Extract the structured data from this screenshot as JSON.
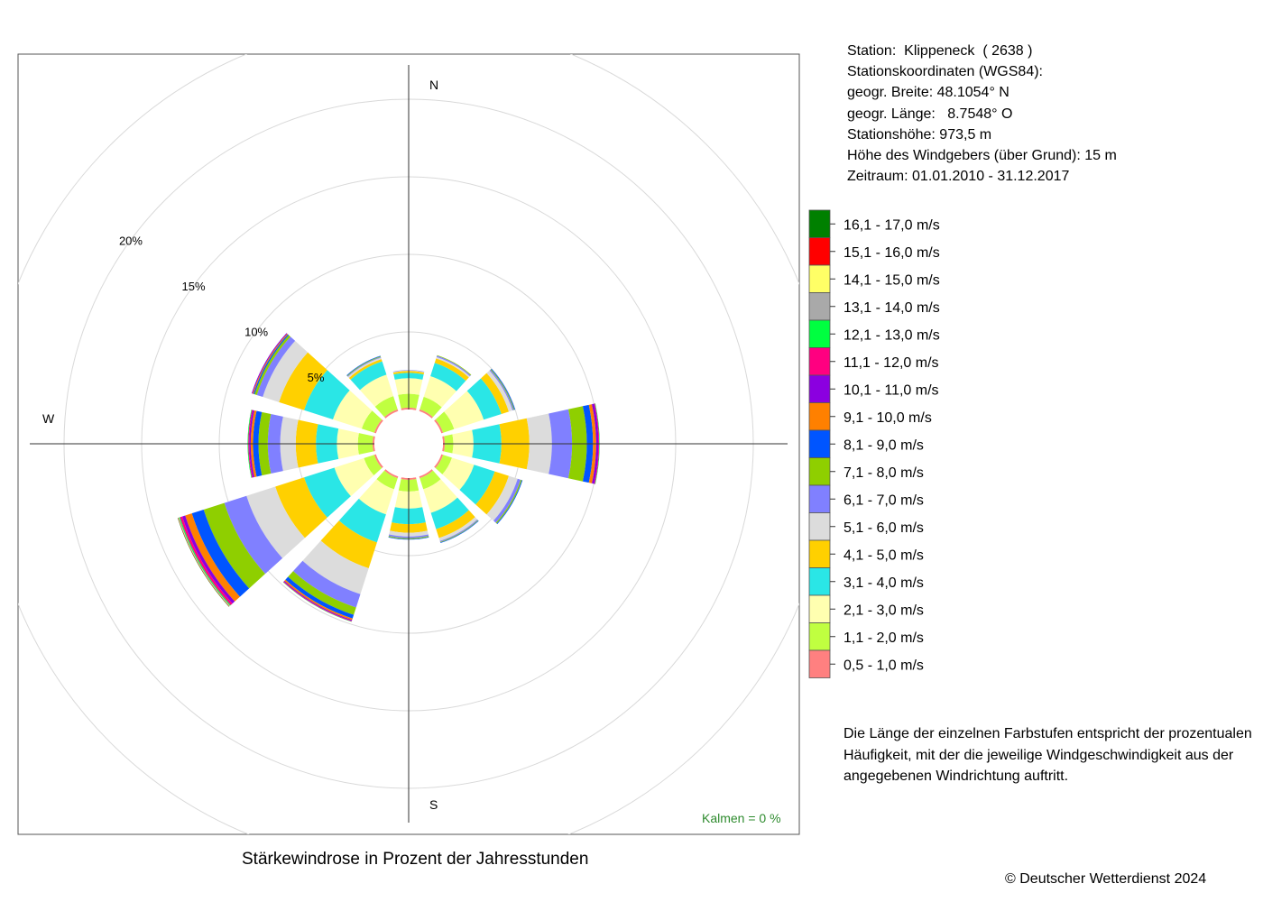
{
  "station": {
    "line_station": "Station:  Klippeneck  ( 2638 )",
    "line_coords": "Stationskoordinaten (WGS84):",
    "line_lat": "geogr. Breite: 48.1054° N",
    "line_lon": "geogr. Länge:   8.7548° O",
    "line_height": "Stationshöhe: 973,5 m",
    "line_anemometer": "Höhe des Windgebers (über Grund): 15 m",
    "line_period": "Zeitraum: 01.01.2010 - 31.12.2017"
  },
  "legend": {
    "classes": [
      {
        "label": "16,1 - 17,0 m/s",
        "color": "#008000"
      },
      {
        "label": "15,1 - 16,0 m/s",
        "color": "#ff0000"
      },
      {
        "label": "14,1 - 15,0 m/s",
        "color": "#ffff66"
      },
      {
        "label": "13,1 - 14,0 m/s",
        "color": "#a9a9a9"
      },
      {
        "label": "12,1 - 13,0 m/s",
        "color": "#00ff40"
      },
      {
        "label": "11,1 - 12,0 m/s",
        "color": "#ff0080"
      },
      {
        "label": "10,1 - 11,0 m/s",
        "color": "#8b00e0"
      },
      {
        "label": "9,1 - 10,0 m/s",
        "color": "#ff8000"
      },
      {
        "label": "8,1 - 9,0 m/s",
        "color": "#0055ff"
      },
      {
        "label": "7,1 - 8,0 m/s",
        "color": "#8fcf00"
      },
      {
        "label": "6,1 - 7,0 m/s",
        "color": "#8080ff"
      },
      {
        "label": "5,1 - 6,0 m/s",
        "color": "#dcdcdc"
      },
      {
        "label": "4,1 - 5,0 m/s",
        "color": "#ffd000"
      },
      {
        "label": "3,1 - 4,0 m/s",
        "color": "#2ae6e6"
      },
      {
        "label": "2,1 - 3,0 m/s",
        "color": "#ffffb0"
      },
      {
        "label": "1,1 - 2,0 m/s",
        "color": "#c0ff40"
      },
      {
        "label": "0,5 - 1,0 m/s",
        "color": "#ff8080"
      }
    ]
  },
  "note": "Die Länge der einzelnen Farbstufen entspricht der prozentualen Häufigkeit, mit der die jeweilige Windgeschwindigkeit aus der angegebenen Windrichtung auftritt.",
  "caption": "Stärkewindrose in Prozent der Jahresstunden",
  "copyright": "© Deutscher Wetterdienst  2024",
  "chart_data": {
    "type": "polar-stacked-bar",
    "title": "Stärkewindrose in Prozent der Jahresstunden",
    "directions_deg": [
      0,
      30,
      60,
      90,
      120,
      150,
      180,
      210,
      240,
      270,
      300,
      330
    ],
    "direction_labels": {
      "N": "N",
      "S": "S",
      "W": "W"
    },
    "radial_ticks": [
      {
        "value": 5,
        "label": "5%"
      },
      {
        "value": 10,
        "label": "10%"
      },
      {
        "value": 15,
        "label": "15%"
      },
      {
        "value": 20,
        "label": "20%"
      }
    ],
    "rmax_percent": 25,
    "calm_label": "Kalmen  =  0 %",
    "calm_percent": 0,
    "speed_classes": [
      "0,5 - 1,0 m/s",
      "1,1 - 2,0 m/s",
      "2,1 - 3,0 m/s",
      "3,1 - 4,0 m/s",
      "4,1 - 5,0 m/s",
      "5,1 - 6,0 m/s",
      "6,1 - 7,0 m/s",
      "7,1 - 8,0 m/s",
      "8,1 - 9,0 m/s",
      "9,1 - 10,0 m/s",
      "10,1 - 11,0 m/s",
      "11,1 - 12,0 m/s",
      "12,1 - 13,0 m/s",
      "13,1 - 14,0 m/s",
      "14,1 - 15,0 m/s",
      "15,1 - 16,0 m/s",
      "16,1 - 17,0 m/s"
    ],
    "series": [
      {
        "direction": 0,
        "values": [
          0.12,
          0.9,
          1.0,
          0.35,
          0.12,
          0.04,
          0.02,
          0,
          0,
          0,
          0,
          0,
          0,
          0,
          0,
          0,
          0
        ]
      },
      {
        "direction": 30,
        "values": [
          0.12,
          0.85,
          1.4,
          0.9,
          0.3,
          0.1,
          0.08,
          0.04,
          0,
          0,
          0,
          0,
          0,
          0,
          0,
          0,
          0
        ]
      },
      {
        "direction": 60,
        "values": [
          0.12,
          0.75,
          2.0,
          1.2,
          0.5,
          0.25,
          0.08,
          0.05,
          0.05,
          0,
          0,
          0,
          0,
          0,
          0,
          0,
          0
        ]
      },
      {
        "direction": 90,
        "values": [
          0.12,
          0.55,
          1.3,
          1.8,
          1.8,
          1.45,
          1.3,
          0.95,
          0.4,
          0.2,
          0.15,
          0.05,
          0.03,
          0,
          0,
          0,
          0
        ]
      },
      {
        "direction": 120,
        "values": [
          0.12,
          0.6,
          1.5,
          1.4,
          0.95,
          0.6,
          0.2,
          0.08,
          0.05,
          0,
          0,
          0,
          0,
          0,
          0,
          0,
          0
        ]
      },
      {
        "direction": 150,
        "values": [
          0.12,
          0.75,
          1.6,
          1.1,
          0.6,
          0.2,
          0.06,
          0.04,
          0.04,
          0,
          0,
          0,
          0,
          0,
          0,
          0,
          0
        ]
      },
      {
        "direction": 180,
        "values": [
          0.12,
          0.75,
          1.1,
          1.0,
          0.55,
          0.25,
          0.1,
          0.06,
          0.04,
          0,
          0,
          0,
          0,
          0,
          0,
          0,
          0
        ]
      },
      {
        "direction": 210,
        "values": [
          0.12,
          0.75,
          1.7,
          1.9,
          1.75,
          1.75,
          0.9,
          0.5,
          0.25,
          0.1,
          0.06,
          0.04,
          0.02,
          0,
          0,
          0,
          0
        ]
      },
      {
        "direction": 240,
        "values": [
          0.12,
          0.7,
          2.0,
          2.05,
          1.95,
          1.95,
          1.5,
          1.4,
          0.8,
          0.45,
          0.2,
          0.15,
          0.06,
          0.04,
          0.02,
          0.02,
          0.02
        ]
      },
      {
        "direction": 270,
        "values": [
          0.12,
          0.95,
          1.35,
          1.35,
          1.3,
          1.0,
          0.8,
          0.6,
          0.35,
          0.15,
          0.1,
          0.06,
          0.04,
          0,
          0,
          0,
          0
        ]
      },
      {
        "direction": 300,
        "values": [
          0.12,
          0.85,
          1.95,
          1.95,
          1.7,
          1.1,
          0.4,
          0.15,
          0.08,
          0.06,
          0.06,
          0,
          0,
          0,
          0,
          0,
          0
        ]
      },
      {
        "direction": 330,
        "values": [
          0.12,
          0.9,
          1.45,
          0.9,
          0.15,
          0.1,
          0.05,
          0.04,
          0.04,
          0,
          0,
          0,
          0,
          0,
          0,
          0,
          0
        ]
      }
    ]
  }
}
